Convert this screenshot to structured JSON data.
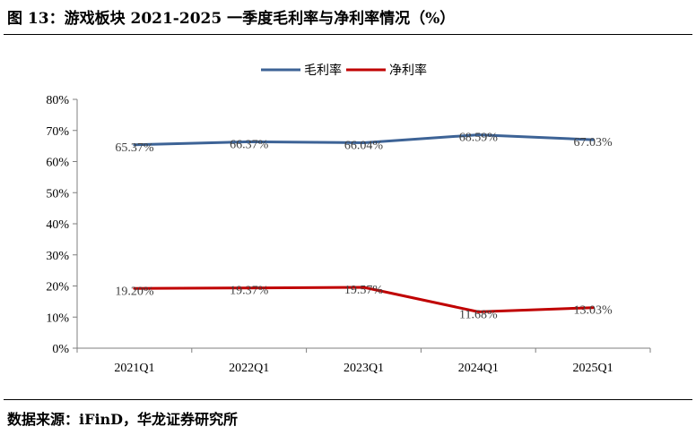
{
  "figure": {
    "title": "图 13：游戏板块 2021-2025 一季度毛利率与净利率情况（%）",
    "source": "数据来源：iFinD，华龙证券研究所"
  },
  "chart_data": {
    "type": "line",
    "title": "",
    "xlabel": "",
    "ylabel": "",
    "categories": [
      "2021Q1",
      "2022Q1",
      "2023Q1",
      "2024Q1",
      "2025Q1"
    ],
    "ylim": [
      0,
      80
    ],
    "yticks": [
      "0%",
      "10%",
      "20%",
      "30%",
      "40%",
      "50%",
      "60%",
      "70%",
      "80%"
    ],
    "grid": false,
    "legend_position": "top-center",
    "series": [
      {
        "name": "毛利率",
        "color": "#3d6396",
        "values": [
          65.37,
          66.37,
          66.04,
          68.59,
          67.03
        ],
        "labels": [
          "65.37%",
          "66.37%",
          "66.04%",
          "68.59%",
          "67.03%"
        ]
      },
      {
        "name": "净利率",
        "color": "#c00000",
        "values": [
          19.2,
          19.37,
          19.57,
          11.68,
          13.03
        ],
        "labels": [
          "19.20%",
          "19.37%",
          "19.57%",
          "11.68%",
          "13.03%"
        ]
      }
    ]
  }
}
